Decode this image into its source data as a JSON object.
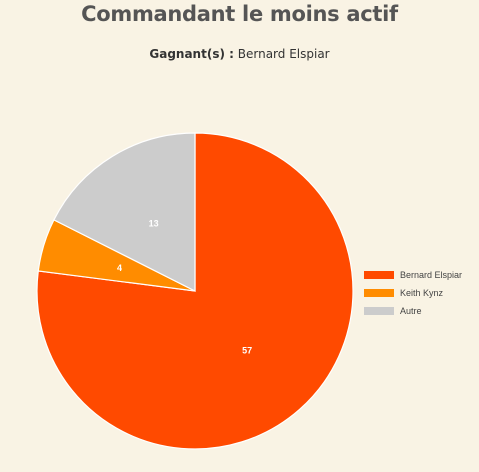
{
  "title": "Commandant le moins actif",
  "subtitle": {
    "label": "Gagnant(s) :",
    "value": "Bernard Elspiar"
  },
  "chart_data": {
    "type": "pie",
    "title": "Commandant le moins actif",
    "categories": [
      "Bernard Elspiar",
      "Keith Kynz",
      "Autre"
    ],
    "values": [
      57,
      4,
      13
    ],
    "colors": [
      "#ff4a00",
      "#ff8c00",
      "#cccccc"
    ],
    "legend": "right"
  }
}
